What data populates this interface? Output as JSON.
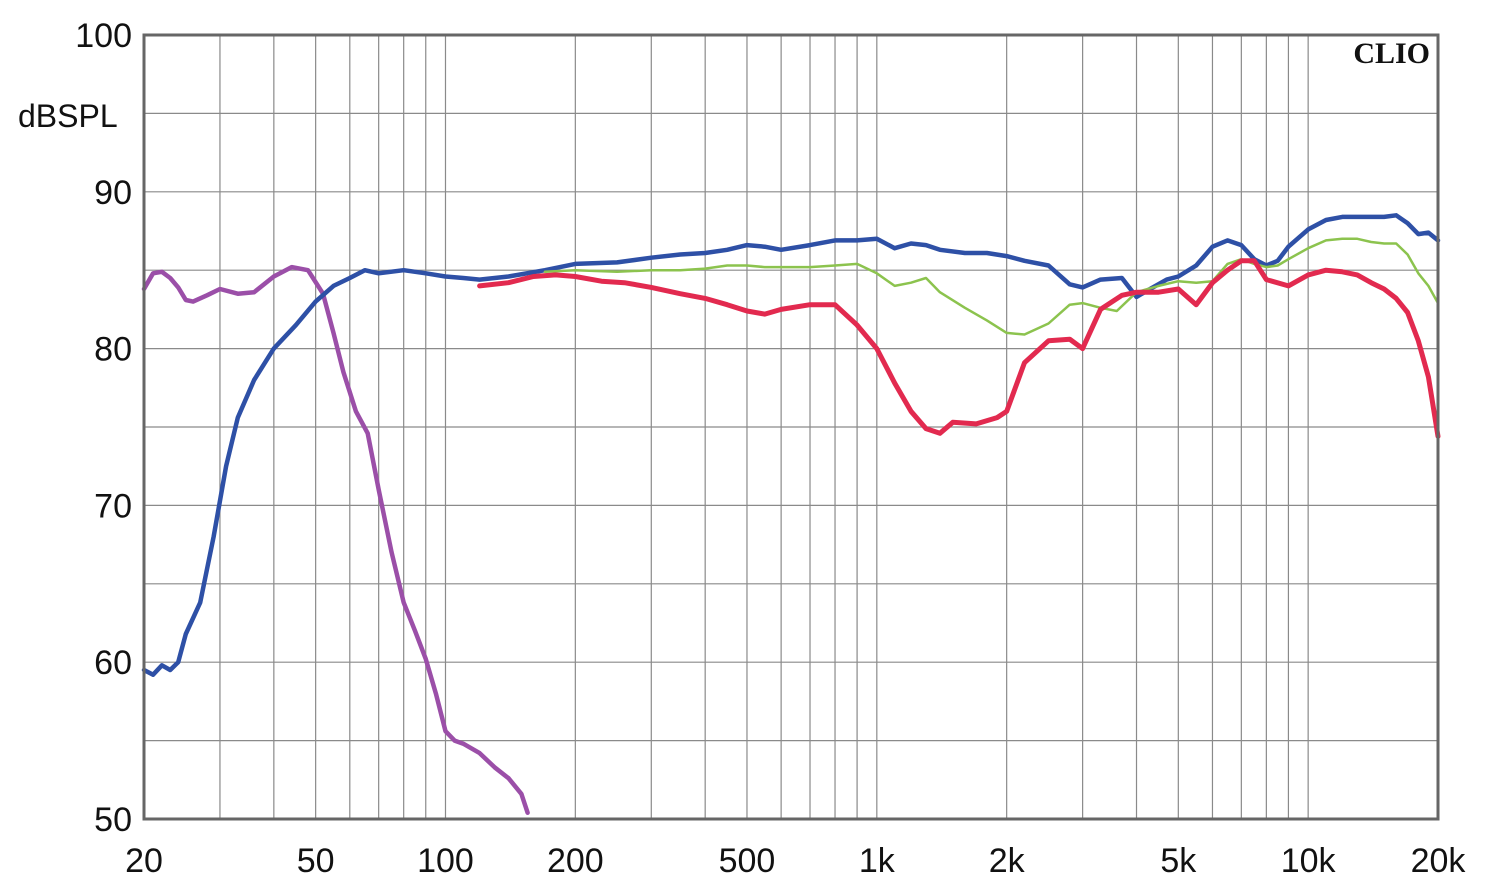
{
  "chart_data": {
    "type": "line",
    "brand": "CLIO",
    "ylabel": "dBSPL",
    "xscale": "log",
    "xlim": [
      20,
      20000
    ],
    "ylim": [
      50,
      100
    ],
    "grid": true,
    "y_ticks": [
      50,
      60,
      70,
      80,
      90,
      100
    ],
    "x_tick_labels": [
      {
        "value": 20,
        "label": "20"
      },
      {
        "value": 50,
        "label": "50"
      },
      {
        "value": 100,
        "label": "100"
      },
      {
        "value": 200,
        "label": "200"
      },
      {
        "value": 500,
        "label": "500"
      },
      {
        "value": 1000,
        "label": "1k"
      },
      {
        "value": 2000,
        "label": "2k"
      },
      {
        "value": 5000,
        "label": "5k"
      },
      {
        "value": 10000,
        "label": "10k"
      },
      {
        "value": 20000,
        "label": "20k"
      }
    ],
    "series": [
      {
        "color": "#9b4fa8",
        "x": [
          20,
          21,
          22,
          23,
          24,
          25,
          26,
          28,
          30,
          33,
          36,
          40,
          44,
          48,
          52,
          55,
          58,
          62,
          66,
          70,
          75,
          80,
          85,
          90,
          95,
          100,
          105,
          110,
          120,
          130,
          140,
          150,
          155
        ],
        "y": [
          83.8,
          84.8,
          84.9,
          84.5,
          83.9,
          83.1,
          83.0,
          83.4,
          83.8,
          83.5,
          83.6,
          84.6,
          85.2,
          85.0,
          83.5,
          81.0,
          78.5,
          76.0,
          74.6,
          71.0,
          67.0,
          63.8,
          62.0,
          60.2,
          58.0,
          55.6,
          55.0,
          54.8,
          54.2,
          53.3,
          52.6,
          51.6,
          50.4
        ]
      },
      {
        "color": "#2e50a6",
        "x": [
          20,
          21,
          22,
          23,
          24,
          25,
          27,
          29,
          31,
          33,
          36,
          40,
          45,
          50,
          55,
          60,
          65,
          70,
          80,
          90,
          100,
          110,
          120,
          140,
          170,
          200,
          250,
          300,
          350,
          400,
          450,
          500,
          550,
          600,
          700,
          800,
          900,
          1000,
          1100,
          1200,
          1300,
          1400,
          1600,
          1800,
          2000,
          2200,
          2500,
          2800,
          3000,
          3300,
          3700,
          4000,
          4300,
          4700,
          5000,
          5500,
          6000,
          6500,
          7000,
          7500,
          8000,
          8500,
          9000,
          10000,
          11000,
          12000,
          13000,
          14000,
          15000,
          16000,
          17000,
          18000,
          19000,
          20000
        ],
        "y": [
          59.5,
          59.2,
          59.8,
          59.5,
          60.0,
          61.8,
          63.8,
          68.0,
          72.5,
          75.6,
          78.0,
          80.0,
          81.5,
          83.0,
          84.0,
          84.5,
          85.0,
          84.8,
          85.0,
          84.8,
          84.6,
          84.5,
          84.4,
          84.6,
          85.0,
          85.4,
          85.5,
          85.8,
          86.0,
          86.1,
          86.3,
          86.6,
          86.5,
          86.3,
          86.6,
          86.9,
          86.9,
          87.0,
          86.4,
          86.7,
          86.6,
          86.3,
          86.1,
          86.1,
          85.9,
          85.6,
          85.3,
          84.1,
          83.9,
          84.4,
          84.5,
          83.3,
          83.8,
          84.4,
          84.6,
          85.3,
          86.5,
          86.9,
          86.6,
          85.7,
          85.3,
          85.6,
          86.5,
          87.6,
          88.2,
          88.4,
          88.4,
          88.4,
          88.4,
          88.5,
          88.0,
          87.3,
          87.4,
          86.9
        ]
      },
      {
        "color": "#8cc34e",
        "x": [
          170,
          200,
          250,
          300,
          350,
          400,
          450,
          500,
          550,
          600,
          700,
          800,
          900,
          1000,
          1100,
          1200,
          1300,
          1400,
          1600,
          1800,
          2000,
          2200,
          2500,
          2800,
          3000,
          3300,
          3600,
          4000,
          4500,
          5000,
          5500,
          6000,
          6500,
          7000,
          7500,
          8000,
          8500,
          9000,
          10000,
          11000,
          12000,
          13000,
          14000,
          15000,
          16000,
          17000,
          18000,
          19000,
          20000
        ],
        "y": [
          84.9,
          85.0,
          84.9,
          85.0,
          85.0,
          85.1,
          85.3,
          85.3,
          85.2,
          85.2,
          85.2,
          85.3,
          85.4,
          84.8,
          84.0,
          84.2,
          84.5,
          83.6,
          82.6,
          81.8,
          81.0,
          80.9,
          81.6,
          82.8,
          82.9,
          82.6,
          82.4,
          83.6,
          84.0,
          84.3,
          84.2,
          84.3,
          85.4,
          85.7,
          85.4,
          85.2,
          85.3,
          85.7,
          86.4,
          86.9,
          87.0,
          87.0,
          86.8,
          86.7,
          86.7,
          86.0,
          84.8,
          84.0,
          82.9
        ]
      },
      {
        "color": "#e22a4f",
        "x": [
          120,
          140,
          160,
          180,
          200,
          230,
          260,
          300,
          350,
          400,
          450,
          500,
          550,
          600,
          700,
          800,
          900,
          1000,
          1100,
          1200,
          1300,
          1400,
          1500,
          1700,
          1900,
          2000,
          2200,
          2500,
          2800,
          3000,
          3300,
          3700,
          4000,
          4500,
          5000,
          5500,
          6000,
          6500,
          7000,
          7500,
          8000,
          9000,
          10000,
          11000,
          12000,
          13000,
          14000,
          15000,
          16000,
          17000,
          18000,
          19000,
          20000
        ],
        "y": [
          84.0,
          84.2,
          84.6,
          84.7,
          84.6,
          84.3,
          84.2,
          83.9,
          83.5,
          83.2,
          82.8,
          82.4,
          82.2,
          82.5,
          82.8,
          82.8,
          81.5,
          80.0,
          77.8,
          76.0,
          74.9,
          74.6,
          75.3,
          75.2,
          75.6,
          76.0,
          79.1,
          80.5,
          80.6,
          80.0,
          82.5,
          83.4,
          83.6,
          83.6,
          83.8,
          82.8,
          84.2,
          85.0,
          85.6,
          85.6,
          84.4,
          84.0,
          84.7,
          85.0,
          84.9,
          84.7,
          84.2,
          83.8,
          83.2,
          82.3,
          80.5,
          78.2,
          74.4
        ]
      }
    ]
  }
}
